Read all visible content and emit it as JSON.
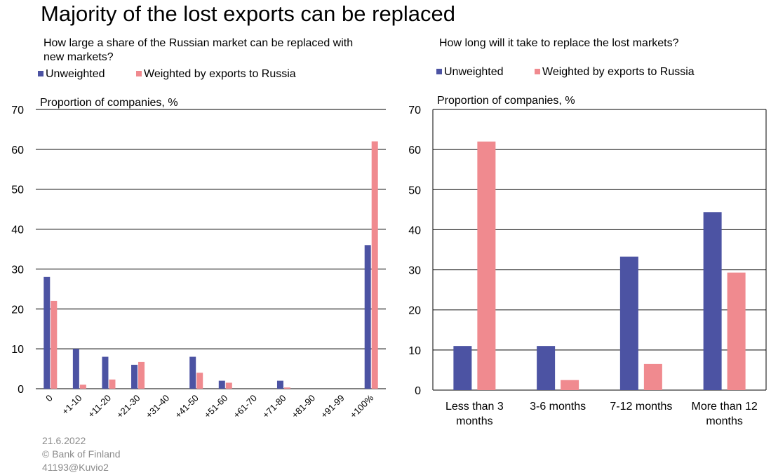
{
  "title": "Majority of the lost exports can be replaced",
  "footer": {
    "date": "21.6.2022",
    "source": "© Bank of Finland",
    "code": "41193@Kuvio2"
  },
  "colors": {
    "unweighted": "#4c53a3",
    "weighted": "#f08a8f"
  },
  "chart_data": [
    {
      "type": "bar",
      "subtitle_lines": [
        "How large a share of the Russian market can be replaced with",
        "new markets?"
      ],
      "ylabel": "Proportion of companies, %",
      "ylim": [
        0,
        70
      ],
      "yticks": [
        "0",
        "10",
        "20",
        "30",
        "40",
        "50",
        "60",
        "70"
      ],
      "grid": "horizontal",
      "legend_position": "top",
      "categories": [
        "0",
        "+1-10",
        "+11-20",
        "+21-30",
        "+31-40",
        "+41-50",
        "+51-60",
        "+61-70",
        "+71-80",
        "+81-90",
        "+91-99",
        "+100%"
      ],
      "series": [
        {
          "name": "Unweighted",
          "values": [
            28,
            10,
            8,
            6,
            0,
            8,
            2,
            0,
            2,
            0,
            0,
            36
          ]
        },
        {
          "name": "Weighted by exports to Russia",
          "values": [
            22,
            1,
            2.3,
            6.7,
            0,
            4,
            1.5,
            0,
            0.3,
            0,
            0,
            62
          ]
        }
      ]
    },
    {
      "type": "bar",
      "subtitle_lines": [
        "How long will it take to replace the lost markets?"
      ],
      "ylabel": "Proportion of companies, %",
      "ylim": [
        0,
        70
      ],
      "yticks": [
        "0",
        "10",
        "20",
        "30",
        "40",
        "50",
        "60",
        "70"
      ],
      "grid": "horizontal",
      "legend_position": "top",
      "categories": [
        [
          "Less than 3",
          "months"
        ],
        [
          "3-6 months"
        ],
        [
          "7-12 months"
        ],
        [
          "More than 12",
          "months"
        ]
      ],
      "series": [
        {
          "name": "Unweighted",
          "values": [
            11,
            11,
            33.3,
            44.4
          ]
        },
        {
          "name": "Weighted by exports to Russia",
          "values": [
            62,
            2.5,
            6.5,
            29.3
          ]
        }
      ]
    }
  ]
}
